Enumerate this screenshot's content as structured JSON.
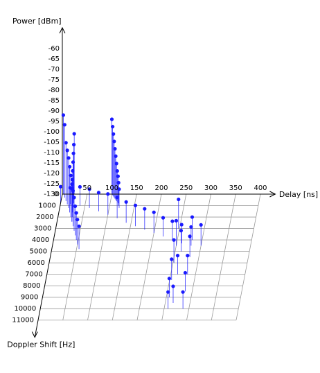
{
  "chart_data": {
    "type": "scatter",
    "subtype": "3d-stem",
    "axes": {
      "x": {
        "label": "Delay [ns]",
        "ticks": [
          "50",
          "100",
          "150",
          "200",
          "250",
          "300",
          "350",
          "400"
        ],
        "range": [
          0,
          400
        ]
      },
      "y": {
        "label": "Doppler Shift [Hz]",
        "ticks": [
          "0",
          "1000",
          "2000",
          "3000",
          "4000",
          "5000",
          "6000",
          "7000",
          "8000",
          "9000",
          "10000",
          "11000"
        ],
        "range": [
          0,
          11000
        ]
      },
      "z": {
        "label": "Power [dBm]",
        "ticks": [
          "-60",
          "-65",
          "-70",
          "-75",
          "-80",
          "-85",
          "-90",
          "-95",
          "-100",
          "-105",
          "-110",
          "-115",
          "-120",
          "-125",
          "-130"
        ],
        "range": [
          -130,
          -60
        ]
      }
    },
    "series": [
      {
        "color": "#1a1aff",
        "points": [
          {
            "x": 2,
            "y": 0,
            "z": -92
          },
          {
            "x": 6,
            "y": 300,
            "z": -95
          },
          {
            "x": 10,
            "y": 600,
            "z": -102
          },
          {
            "x": 14,
            "y": 900,
            "z": -104
          },
          {
            "x": 18,
            "y": 1200,
            "z": -106
          },
          {
            "x": 22,
            "y": 1600,
            "z": -108
          },
          {
            "x": 26,
            "y": 2000,
            "z": -110
          },
          {
            "x": 30,
            "y": 2400,
            "z": -112
          },
          {
            "x": 34,
            "y": 2800,
            "z": -113
          },
          {
            "x": 38,
            "y": 3200,
            "z": -114
          },
          {
            "x": 42,
            "y": 3600,
            "z": -116
          },
          {
            "x": 46,
            "y": 4000,
            "z": -117
          },
          {
            "x": 50,
            "y": 4400,
            "z": -118
          },
          {
            "x": 55,
            "y": 4800,
            "z": -119
          },
          {
            "x": 24,
            "y": 0,
            "z": -101
          },
          {
            "x": 25,
            "y": 400,
            "z": -104
          },
          {
            "x": 26,
            "y": 800,
            "z": -106
          },
          {
            "x": 27,
            "y": 1200,
            "z": -108
          },
          {
            "x": 28,
            "y": 1600,
            "z": -110
          },
          {
            "x": 29,
            "y": 2000,
            "z": -112
          },
          {
            "x": 30,
            "y": 2400,
            "z": -114
          },
          {
            "x": 100,
            "y": 0,
            "z": -94
          },
          {
            "x": 102,
            "y": 100,
            "z": -97
          },
          {
            "x": 104,
            "y": 200,
            "z": -100
          },
          {
            "x": 106,
            "y": 300,
            "z": -103
          },
          {
            "x": 108,
            "y": 400,
            "z": -106
          },
          {
            "x": 110,
            "y": 500,
            "z": -109
          },
          {
            "x": 112,
            "y": 600,
            "z": -112
          },
          {
            "x": 114,
            "y": 700,
            "z": -115
          },
          {
            "x": 116,
            "y": 800,
            "z": -117
          },
          {
            "x": 118,
            "y": 1000,
            "z": -119
          },
          {
            "x": 120,
            "y": 1200,
            "z": -121
          },
          {
            "x": 0,
            "y": 800,
            "z": -122
          },
          {
            "x": 20,
            "y": 900,
            "z": -122
          },
          {
            "x": 40,
            "y": 1000,
            "z": -121
          },
          {
            "x": 60,
            "y": 1200,
            "z": -121
          },
          {
            "x": 80,
            "y": 1500,
            "z": -121
          },
          {
            "x": 100,
            "y": 1800,
            "z": -120
          },
          {
            "x": 120,
            "y": 2100,
            "z": -120
          },
          {
            "x": 140,
            "y": 2500,
            "z": -120
          },
          {
            "x": 160,
            "y": 2800,
            "z": -120
          },
          {
            "x": 180,
            "y": 3100,
            "z": -120
          },
          {
            "x": 200,
            "y": 3400,
            "z": -120
          },
          {
            "x": 220,
            "y": 3700,
            "z": -121
          },
          {
            "x": 240,
            "y": 4000,
            "z": -121
          },
          {
            "x": 260,
            "y": 4300,
            "z": -121
          },
          {
            "x": 280,
            "y": 4500,
            "z": -121
          },
          {
            "x": 300,
            "y": 4500,
            "z": -120
          },
          {
            "x": 248,
            "y": 3000,
            "z": -116
          },
          {
            "x": 250,
            "y": 4500,
            "z": -118
          },
          {
            "x": 252,
            "y": 6000,
            "z": -119
          },
          {
            "x": 254,
            "y": 7500,
            "z": -120
          },
          {
            "x": 256,
            "y": 9000,
            "z": -121
          },
          {
            "x": 258,
            "y": 10000,
            "z": -122
          },
          {
            "x": 262,
            "y": 5000,
            "z": -120
          },
          {
            "x": 264,
            "y": 7000,
            "z": -121
          },
          {
            "x": 266,
            "y": 9500,
            "z": -122
          },
          {
            "x": 280,
            "y": 4000,
            "z": -119
          },
          {
            "x": 282,
            "y": 5500,
            "z": -120
          },
          {
            "x": 284,
            "y": 7000,
            "z": -121
          },
          {
            "x": 286,
            "y": 8500,
            "z": -121
          },
          {
            "x": 288,
            "y": 10000,
            "z": -122
          }
        ]
      }
    ]
  }
}
